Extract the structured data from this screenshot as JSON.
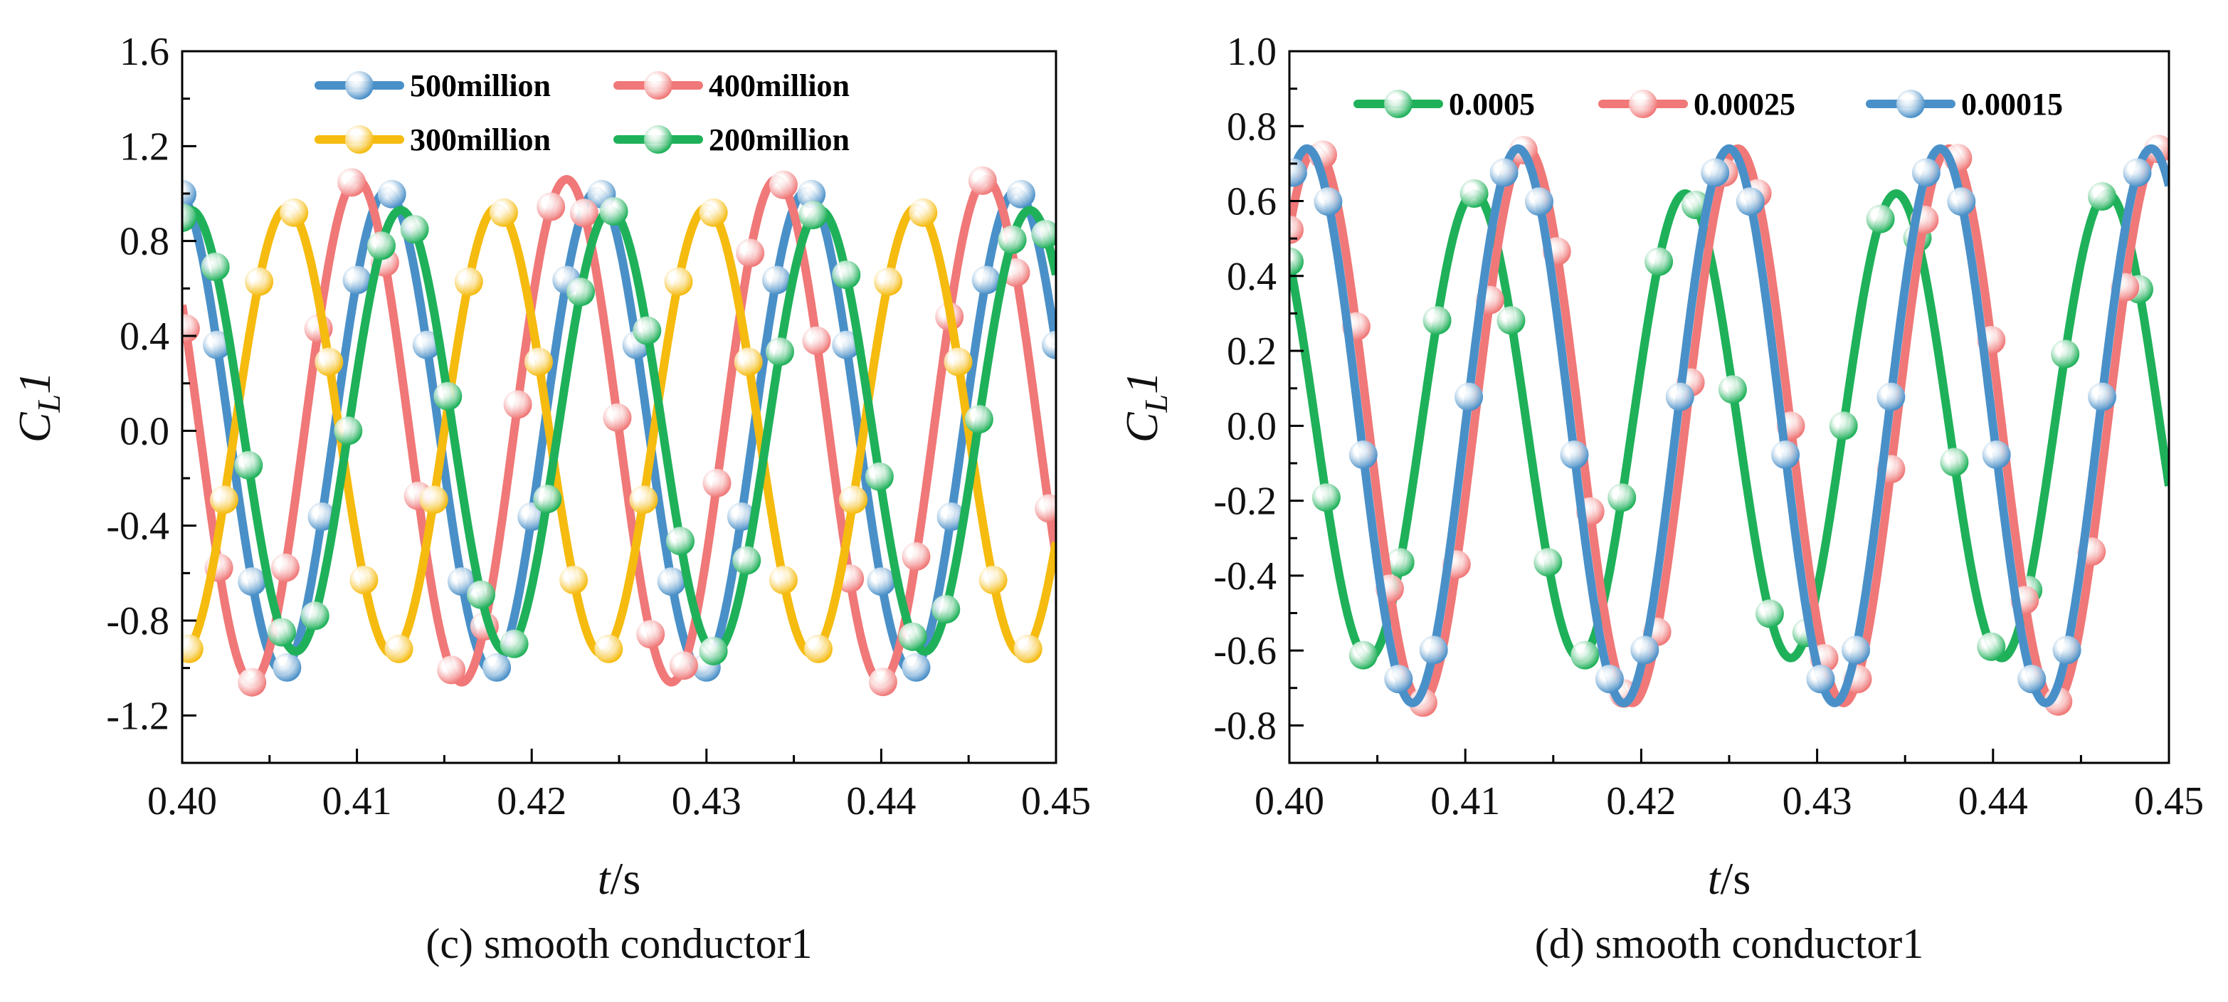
{
  "chart_data": [
    {
      "type": "line",
      "caption": "(c) smooth conductor1",
      "xlabel": "t/s",
      "ylabel": "CL1",
      "xlim": [
        0.4,
        0.45
      ],
      "ylim": [
        -1.4,
        1.6
      ],
      "xticks": [
        "0.40",
        "0.41",
        "0.42",
        "0.43",
        "0.44",
        "0.45"
      ],
      "yticks": [
        "-1.2",
        "-0.8",
        "-0.4",
        "0.0",
        "0.4",
        "0.8",
        "1.2",
        "1.6"
      ],
      "legend": [
        "500million",
        "400million",
        "300million",
        "200million"
      ],
      "series": [
        {
          "name": "500million",
          "color": "#4a90c8",
          "amplitude": 1.01,
          "period": 0.012,
          "peak_t": 0.4117,
          "marker_step": 0.002,
          "marker_start": 0.4
        },
        {
          "name": "400million",
          "color": "#f07878",
          "amplitude": 1.06,
          "period": 0.012,
          "peak_t": 0.41,
          "marker_step": 0.0019,
          "marker_start": 0.4002
        },
        {
          "name": "300million",
          "color": "#f5bb0f",
          "amplitude": 0.94,
          "period": 0.012,
          "peak_t": 0.406,
          "marker_step": 0.002,
          "marker_start": 0.4004
        },
        {
          "name": "200million",
          "color": "#1fb15a",
          "amplitude": 0.93,
          "period": 0.012,
          "peak_t": 0.4125,
          "marker_step": 0.0019,
          "marker_start": 0.4
        }
      ]
    },
    {
      "type": "line",
      "caption": "(d) smooth conductor1",
      "xlabel": "t/s",
      "ylabel": "CL1",
      "xlim": [
        0.4,
        0.45
      ],
      "ylim": [
        -0.9,
        1.0
      ],
      "xticks": [
        "0.40",
        "0.41",
        "0.42",
        "0.43",
        "0.44",
        "0.45"
      ],
      "yticks": [
        "-0.8",
        "-0.6",
        "-0.4",
        "-0.2",
        "0.0",
        "0.2",
        "0.4",
        "0.6",
        "0.8",
        "1.0"
      ],
      "legend": [
        "0.0005",
        "0.00025",
        "0.00015"
      ],
      "series": [
        {
          "name": "0.0005",
          "color": "#1fb15a",
          "amplitude": 0.62,
          "period": 0.012,
          "peak_t": 0.4105,
          "marker_step": 0.0021,
          "marker_start": 0.4
        },
        {
          "name": "0.00025",
          "color": "#f07878",
          "amplitude": 0.74,
          "period": 0.012,
          "peak_t": 0.4135,
          "marker_step": 0.0019,
          "marker_start": 0.4
        },
        {
          "name": "0.00015",
          "color": "#4a90c8",
          "amplitude": 0.74,
          "period": 0.012,
          "peak_t": 0.413,
          "marker_step": 0.002,
          "marker_start": 0.4002
        }
      ]
    }
  ]
}
